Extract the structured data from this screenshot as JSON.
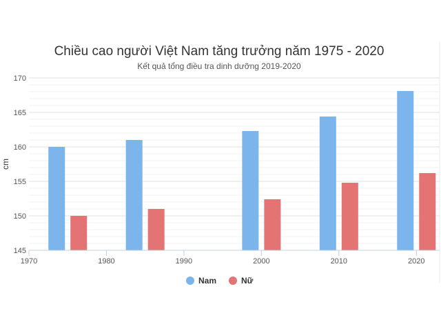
{
  "chart_data": {
    "type": "bar",
    "title": "Chiều cao người Việt Nam tăng trưởng năm 1975 - 2020",
    "subtitle": "Kết quả tổng điều tra dinh dưỡng 2019-2020",
    "xlabel": "",
    "ylabel": "cm",
    "xlim": [
      1970,
      2023
    ],
    "ylim": [
      145,
      170
    ],
    "x_ticks": [
      "1970",
      "1980",
      "1990",
      "2000",
      "2010",
      "2020"
    ],
    "y_ticks": [
      "145",
      "150",
      "155",
      "160",
      "165",
      "170"
    ],
    "grid": true,
    "legend_position": "bottom-center",
    "x": [
      1975,
      1985,
      2000,
      2010,
      2020
    ],
    "series": [
      {
        "name": "Nam",
        "color": "#7cb5ec",
        "values": [
          160.0,
          161.0,
          162.3,
          164.4,
          168.1
        ]
      },
      {
        "name": "Nữ",
        "color": "#e47373",
        "values": [
          150.0,
          151.0,
          152.4,
          154.8,
          156.2
        ]
      }
    ]
  }
}
